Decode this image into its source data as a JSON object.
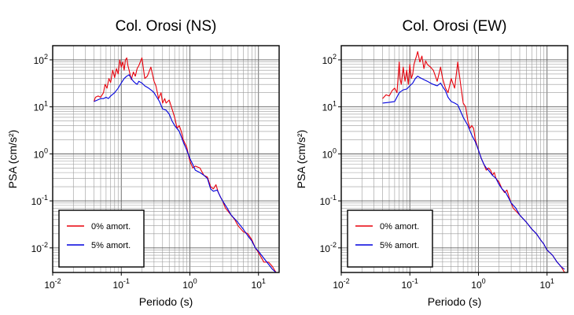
{
  "chart_data": [
    {
      "type": "line",
      "title": "Col. Orosi (NS)",
      "xlabel": "Periodo (s)",
      "ylabel": "PSA (cm/s²)",
      "xscale": "log",
      "yscale": "log",
      "xlim": [
        0.01,
        20
      ],
      "ylim": [
        0.003,
        200
      ],
      "x_ticks": [
        0.01,
        0.1,
        1,
        10
      ],
      "y_ticks": [
        0.01,
        0.1,
        1,
        10,
        100
      ],
      "grid": true,
      "legend_position": "bottom-left",
      "series": [
        {
          "name": "0% amort.",
          "color": "#e8000b",
          "points": [
            [
              0.04,
              13
            ],
            [
              0.042,
              16
            ],
            [
              0.046,
              17
            ],
            [
              0.05,
              16
            ],
            [
              0.055,
              20
            ],
            [
              0.058,
              30
            ],
            [
              0.062,
              25
            ],
            [
              0.066,
              40
            ],
            [
              0.07,
              33
            ],
            [
              0.075,
              60
            ],
            [
              0.08,
              42
            ],
            [
              0.085,
              65
            ],
            [
              0.09,
              50
            ],
            [
              0.095,
              100
            ],
            [
              0.1,
              70
            ],
            [
              0.105,
              90
            ],
            [
              0.11,
              60
            ],
            [
              0.115,
              100
            ],
            [
              0.12,
              110
            ],
            [
              0.125,
              75
            ],
            [
              0.13,
              60
            ],
            [
              0.14,
              38
            ],
            [
              0.15,
              55
            ],
            [
              0.16,
              45
            ],
            [
              0.17,
              65
            ],
            [
              0.18,
              75
            ],
            [
              0.2,
              110
            ],
            [
              0.22,
              40
            ],
            [
              0.24,
              45
            ],
            [
              0.27,
              70
            ],
            [
              0.3,
              35
            ],
            [
              0.32,
              28
            ],
            [
              0.35,
              15
            ],
            [
              0.38,
              20
            ],
            [
              0.4,
              12
            ],
            [
              0.43,
              15
            ],
            [
              0.45,
              12
            ],
            [
              0.5,
              14
            ],
            [
              0.55,
              9
            ],
            [
              0.6,
              6
            ],
            [
              0.65,
              3.5
            ],
            [
              0.7,
              4
            ],
            [
              0.75,
              3
            ],
            [
              0.8,
              2
            ],
            [
              0.9,
              1.4
            ],
            [
              1.0,
              0.7
            ],
            [
              1.1,
              0.5
            ],
            [
              1.2,
              0.55
            ],
            [
              1.4,
              0.5
            ],
            [
              1.6,
              0.35
            ],
            [
              1.8,
              0.32
            ],
            [
              2.0,
              0.2
            ],
            [
              2.2,
              0.18
            ],
            [
              2.4,
              0.22
            ],
            [
              2.6,
              0.15
            ],
            [
              2.8,
              0.12
            ],
            [
              3.0,
              0.1
            ],
            [
              3.3,
              0.07
            ],
            [
              3.6,
              0.06
            ],
            [
              4,
              0.05
            ],
            [
              4.5,
              0.04
            ],
            [
              5,
              0.03
            ],
            [
              6,
              0.022
            ],
            [
              7,
              0.02
            ],
            [
              8,
              0.015
            ],
            [
              9,
              0.01
            ],
            [
              10,
              0.008
            ],
            [
              12,
              0.005
            ],
            [
              14,
              0.005
            ],
            [
              16,
              0.004
            ],
            [
              18,
              0.003
            ]
          ]
        },
        {
          "name": "5% amort.",
          "color": "#0000dd",
          "points": [
            [
              0.04,
              13
            ],
            [
              0.045,
              14
            ],
            [
              0.05,
              15
            ],
            [
              0.055,
              15
            ],
            [
              0.06,
              16
            ],
            [
              0.065,
              15
            ],
            [
              0.07,
              17
            ],
            [
              0.08,
              20
            ],
            [
              0.09,
              25
            ],
            [
              0.1,
              32
            ],
            [
              0.11,
              40
            ],
            [
              0.12,
              45
            ],
            [
              0.13,
              48
            ],
            [
              0.14,
              40
            ],
            [
              0.15,
              35
            ],
            [
              0.16,
              32
            ],
            [
              0.17,
              30
            ],
            [
              0.18,
              35
            ],
            [
              0.2,
              32
            ],
            [
              0.22,
              28
            ],
            [
              0.25,
              25
            ],
            [
              0.28,
              22
            ],
            [
              0.3,
              20
            ],
            [
              0.33,
              16
            ],
            [
              0.36,
              13
            ],
            [
              0.4,
              9
            ],
            [
              0.45,
              8.5
            ],
            [
              0.5,
              7
            ],
            [
              0.55,
              5
            ],
            [
              0.6,
              4
            ],
            [
              0.7,
              3
            ],
            [
              0.8,
              1.8
            ],
            [
              0.9,
              1.2
            ],
            [
              1.0,
              0.8
            ],
            [
              1.1,
              0.6
            ],
            [
              1.2,
              0.45
            ],
            [
              1.4,
              0.4
            ],
            [
              1.6,
              0.35
            ],
            [
              1.8,
              0.3
            ],
            [
              2.0,
              0.18
            ],
            [
              2.2,
              0.16
            ],
            [
              2.5,
              0.17
            ],
            [
              2.8,
              0.12
            ],
            [
              3.0,
              0.1
            ],
            [
              3.5,
              0.07
            ],
            [
              4,
              0.05
            ],
            [
              5,
              0.035
            ],
            [
              6,
              0.025
            ],
            [
              7,
              0.018
            ],
            [
              8,
              0.014
            ],
            [
              9,
              0.01
            ],
            [
              10,
              0.0085
            ],
            [
              12,
              0.006
            ],
            [
              14,
              0.0045
            ],
            [
              16,
              0.0035
            ],
            [
              18,
              0.003
            ]
          ]
        }
      ]
    },
    {
      "type": "line",
      "title": "Col. Orosi (EW)",
      "xlabel": "Periodo (s)",
      "ylabel": "PSA (cm/s²)",
      "xscale": "log",
      "yscale": "log",
      "xlim": [
        0.01,
        20
      ],
      "ylim": [
        0.003,
        200
      ],
      "x_ticks": [
        0.01,
        0.1,
        1,
        10
      ],
      "y_ticks": [
        0.01,
        0.1,
        1,
        10,
        100
      ],
      "grid": true,
      "legend_position": "bottom-left",
      "series": [
        {
          "name": "0% amort.",
          "color": "#e8000b",
          "points": [
            [
              0.04,
              15
            ],
            [
              0.045,
              18
            ],
            [
              0.05,
              17
            ],
            [
              0.055,
              22
            ],
            [
              0.06,
              25
            ],
            [
              0.065,
              20
            ],
            [
              0.07,
              90
            ],
            [
              0.072,
              40
            ],
            [
              0.075,
              30
            ],
            [
              0.08,
              70
            ],
            [
              0.085,
              35
            ],
            [
              0.09,
              60
            ],
            [
              0.095,
              30
            ],
            [
              0.1,
              80
            ],
            [
              0.105,
              40
            ],
            [
              0.11,
              50
            ],
            [
              0.115,
              80
            ],
            [
              0.12,
              100
            ],
            [
              0.125,
              120
            ],
            [
              0.13,
              150
            ],
            [
              0.14,
              90
            ],
            [
              0.15,
              120
            ],
            [
              0.16,
              65
            ],
            [
              0.17,
              95
            ],
            [
              0.18,
              80
            ],
            [
              0.2,
              70
            ],
            [
              0.22,
              60
            ],
            [
              0.25,
              35
            ],
            [
              0.28,
              70
            ],
            [
              0.3,
              40
            ],
            [
              0.33,
              25
            ],
            [
              0.36,
              20
            ],
            [
              0.4,
              40
            ],
            [
              0.45,
              25
            ],
            [
              0.5,
              90
            ],
            [
              0.55,
              30
            ],
            [
              0.6,
              12
            ],
            [
              0.65,
              10
            ],
            [
              0.7,
              5
            ],
            [
              0.75,
              3.5
            ],
            [
              0.8,
              4
            ],
            [
              0.85,
              3.5
            ],
            [
              0.9,
              2
            ],
            [
              1.0,
              1.2
            ],
            [
              1.1,
              0.8
            ],
            [
              1.2,
              0.6
            ],
            [
              1.3,
              0.45
            ],
            [
              1.4,
              0.5
            ],
            [
              1.5,
              0.45
            ],
            [
              1.6,
              0.35
            ],
            [
              1.7,
              0.4
            ],
            [
              1.8,
              0.3
            ],
            [
              2.0,
              0.25
            ],
            [
              2.2,
              0.18
            ],
            [
              2.4,
              0.15
            ],
            [
              2.6,
              0.17
            ],
            [
              2.8,
              0.12
            ],
            [
              3.0,
              0.09
            ],
            [
              3.2,
              0.07
            ],
            [
              4,
              0.05
            ],
            [
              5,
              0.035
            ],
            [
              6,
              0.025
            ],
            [
              7,
              0.02
            ],
            [
              8,
              0.015
            ],
            [
              9,
              0.012
            ],
            [
              10,
              0.009
            ],
            [
              12,
              0.007
            ],
            [
              14,
              0.005
            ],
            [
              16,
              0.004
            ],
            [
              18,
              0.003
            ]
          ]
        },
        {
          "name": "5% amort.",
          "color": "#0000dd",
          "points": [
            [
              0.04,
              12
            ],
            [
              0.05,
              12.5
            ],
            [
              0.06,
              13
            ],
            [
              0.07,
              20
            ],
            [
              0.08,
              23
            ],
            [
              0.09,
              24
            ],
            [
              0.1,
              28
            ],
            [
              0.11,
              32
            ],
            [
              0.12,
              40
            ],
            [
              0.13,
              45
            ],
            [
              0.14,
              42
            ],
            [
              0.16,
              38
            ],
            [
              0.18,
              35
            ],
            [
              0.2,
              32
            ],
            [
              0.22,
              30
            ],
            [
              0.25,
              28
            ],
            [
              0.28,
              32
            ],
            [
              0.3,
              27
            ],
            [
              0.33,
              22
            ],
            [
              0.36,
              16
            ],
            [
              0.4,
              13
            ],
            [
              0.45,
              12
            ],
            [
              0.5,
              11
            ],
            [
              0.55,
              8
            ],
            [
              0.6,
              6
            ],
            [
              0.7,
              4
            ],
            [
              0.8,
              2.5
            ],
            [
              0.9,
              1.8
            ],
            [
              1.0,
              1.2
            ],
            [
              1.1,
              0.8
            ],
            [
              1.2,
              0.6
            ],
            [
              1.3,
              0.5
            ],
            [
              1.4,
              0.45
            ],
            [
              1.6,
              0.35
            ],
            [
              1.8,
              0.3
            ],
            [
              2.0,
              0.22
            ],
            [
              2.2,
              0.18
            ],
            [
              2.5,
              0.15
            ],
            [
              2.8,
              0.11
            ],
            [
              3.0,
              0.09
            ],
            [
              3.5,
              0.07
            ],
            [
              4,
              0.05
            ],
            [
              5,
              0.035
            ],
            [
              6,
              0.025
            ],
            [
              7,
              0.02
            ],
            [
              8,
              0.015
            ],
            [
              9,
              0.012
            ],
            [
              10,
              0.009
            ],
            [
              12,
              0.007
            ],
            [
              14,
              0.005
            ],
            [
              16,
              0.004
            ],
            [
              18,
              0.0035
            ]
          ]
        }
      ]
    }
  ]
}
